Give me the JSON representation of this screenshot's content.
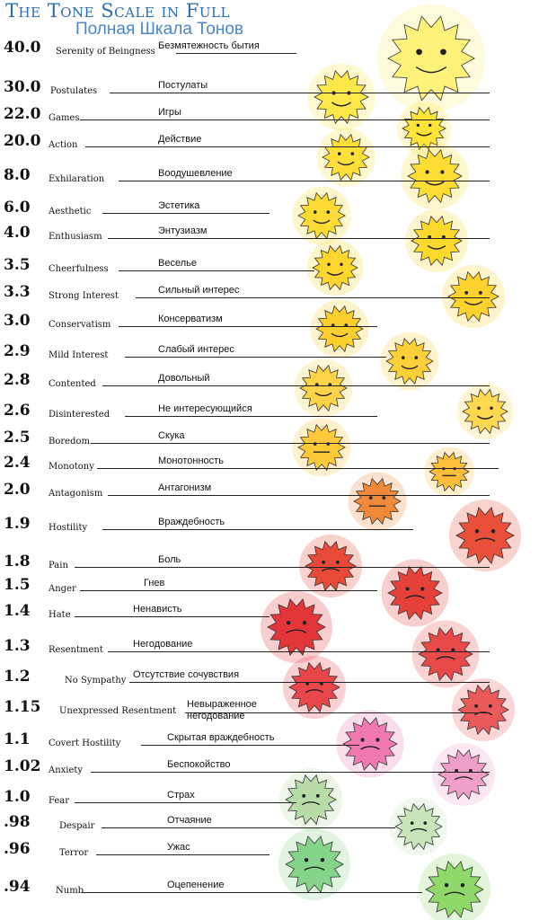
{
  "title_en": "The Tone Scale in Full",
  "title_ru": "Полная Шкала Тонов",
  "tones": [
    {
      "value": "40.0",
      "en": "Serenity of Beingness",
      "ru": "Безмятежность бытия",
      "color": "#fff27a"
    },
    {
      "value": "30.0",
      "en": "Postulates",
      "ru": "Постулаты",
      "color": "#ffe94a"
    },
    {
      "value": "22.0",
      "en": "Games",
      "ru": "Игры",
      "color": "#ffe43a"
    },
    {
      "value": "20.0",
      "en": "Action",
      "ru": "Действие",
      "color": "#ffe03a"
    },
    {
      "value": "8.0",
      "en": "Exhilaration",
      "ru": "Воодушевление",
      "color": "#ffdd33"
    },
    {
      "value": "6.0",
      "en": "Aesthetic",
      "ru": "Эстетика",
      "color": "#ffdc33"
    },
    {
      "value": "4.0",
      "en": "Enthusiasm",
      "ru": "Энтузиазм",
      "color": "#ffd92e"
    },
    {
      "value": "3.5",
      "en": "Cheerfulness",
      "ru": "Веселье",
      "color": "#ffd62e"
    },
    {
      "value": "3.3",
      "en": "Strong Interest",
      "ru": "Сильный интерес",
      "color": "#ffd22e"
    },
    {
      "value": "3.0",
      "en": "Conservatism",
      "ru": "Консерватизм",
      "color": "#ffcf2e"
    },
    {
      "value": "2.9",
      "en": "Mild Interest",
      "ru": "Слабый интерес",
      "color": "#ffcf3a"
    },
    {
      "value": "2.8",
      "en": "Contented",
      "ru": "Довольный",
      "color": "#ffd34a"
    },
    {
      "value": "2.6",
      "en": "Disinterested",
      "ru": "Не интересующийся",
      "color": "#ffd84f"
    },
    {
      "value": "2.5",
      "en": "Boredom",
      "ru": "Скука",
      "color": "#ffc93a"
    },
    {
      "value": "2.4",
      "en": "Monotony",
      "ru": "Монотонность",
      "color": "#ffbf3a"
    },
    {
      "value": "2.0",
      "en": "Antagonism",
      "ru": "Антагонизм",
      "color": "#f08a3a"
    },
    {
      "value": "1.9",
      "en": "Hostility",
      "ru": "Враждебность",
      "color": "#e8503a"
    },
    {
      "value": "1.8",
      "en": "Pain",
      "ru": "Боль",
      "color": "#e84a3a"
    },
    {
      "value": "1.5",
      "en": "Anger",
      "ru": "Гнев",
      "color": "#e6403a"
    },
    {
      "value": "1.4",
      "en": "Hate",
      "ru": "Ненависть",
      "color": "#e2363a"
    },
    {
      "value": "1.3",
      "en": "Resentment",
      "ru": "Негодование",
      "color": "#e84a4a"
    },
    {
      "value": "1.2",
      "en": "No Sympathy",
      "ru": "Отсутствие сочувствия",
      "color": "#e8464a"
    },
    {
      "value": "1.15",
      "en": "Unexpressed Resentment",
      "ru": "Невыраженное негодование",
      "color": "#ea5a5a"
    },
    {
      "value": "1.1",
      "en": "Covert Hostility",
      "ru": "Скрытая враждебность",
      "color": "#f07ab0"
    },
    {
      "value": "1.02",
      "en": "Anxiety",
      "ru": "Беспокойство",
      "color": "#f0a0c8"
    },
    {
      "value": "1.0",
      "en": "Fear",
      "ru": "Страх",
      "color": "#b8dca8"
    },
    {
      "value": ".98",
      "en": "Despair",
      "ru": "Отчаяние",
      "color": "#c8e6b8"
    },
    {
      "value": ".96",
      "en": "Terror",
      "ru": "Ужас",
      "color": "#86d48a"
    },
    {
      "value": ".94",
      "en": "Numb",
      "ru": "Оцепенение",
      "color": "#90d86a"
    }
  ]
}
